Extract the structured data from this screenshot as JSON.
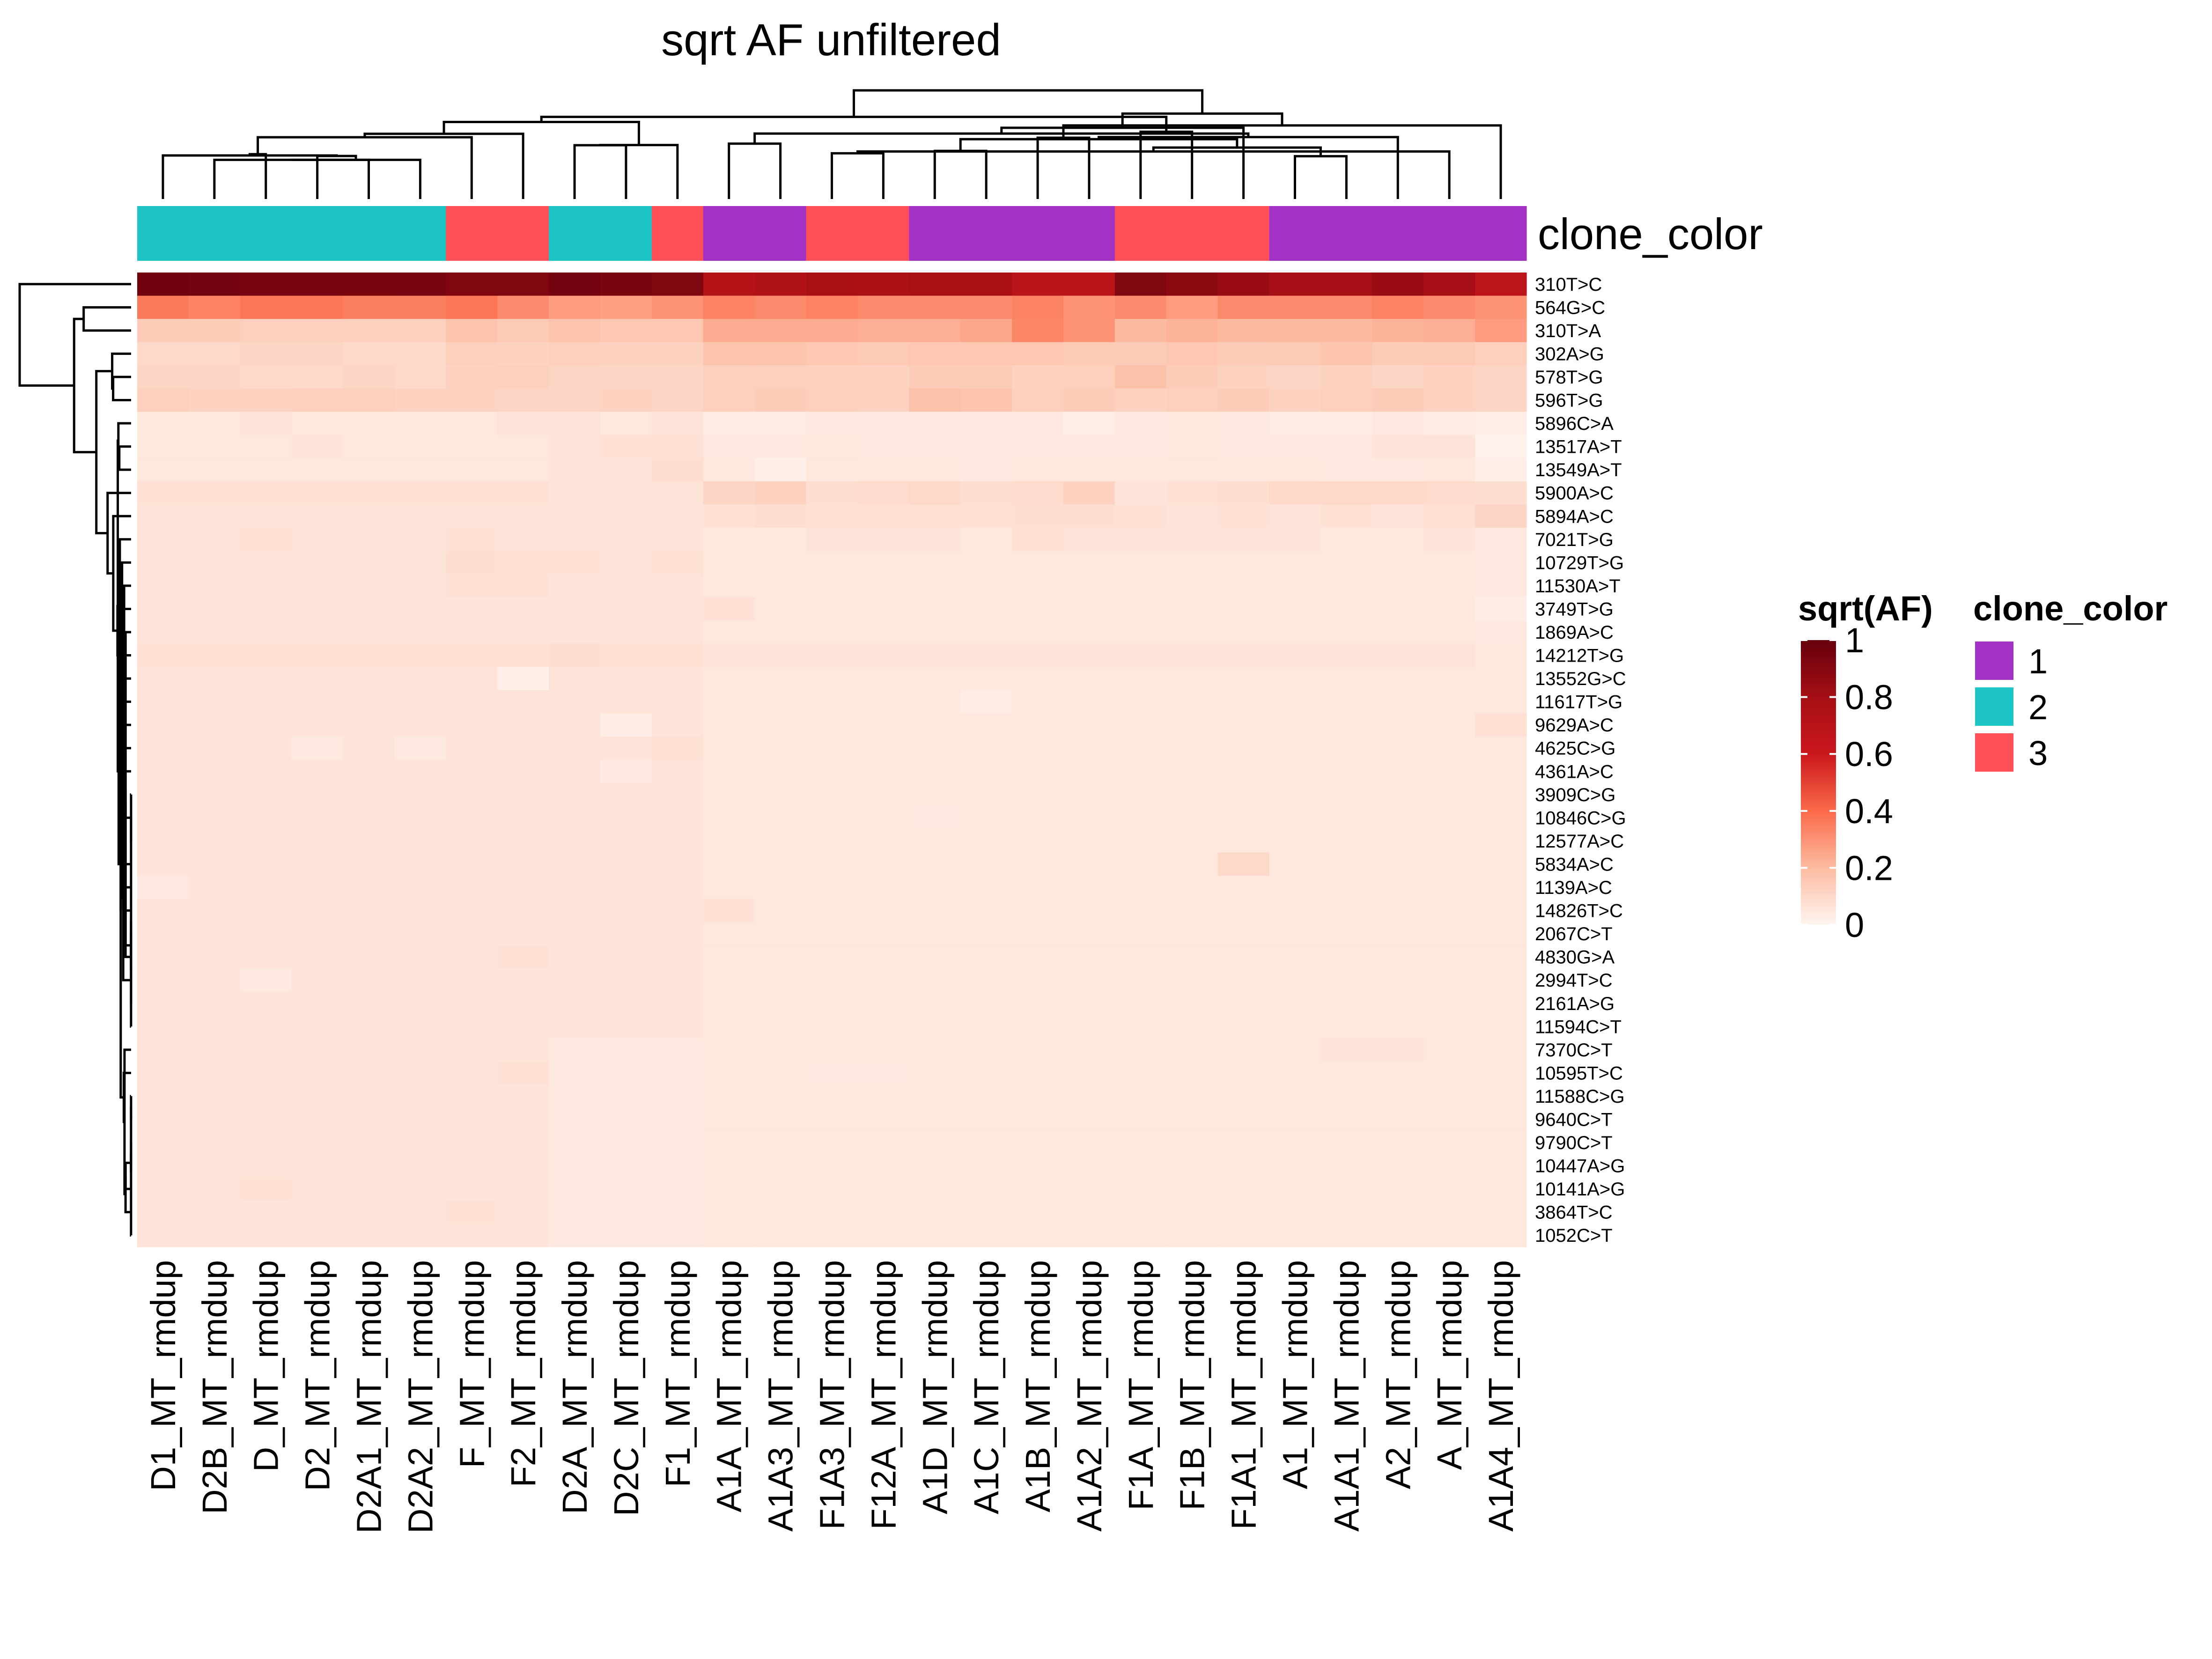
{
  "chart_data": {
    "type": "heatmap",
    "title": "sqrt AF unfiltered",
    "columns": [
      "D1_MT_rmdup",
      "D2B_MT_rmdup",
      "D_MT_rmdup",
      "D2_MT_rmdup",
      "D2A1_MT_rmdup",
      "D2A2_MT_rmdup",
      "F_MT_rmdup",
      "F2_MT_rmdup",
      "D2A_MT_rmdup",
      "D2C_MT_rmdup",
      "F1_MT_rmdup",
      "A1A_MT_rmdup",
      "A1A3_MT_rmdup",
      "F1A3_MT_rmdup",
      "F12A_MT_rmdup",
      "A1D_MT_rmdup",
      "A1C_MT_rmdup",
      "A1B_MT_rmdup",
      "A1A2_MT_rmdup",
      "F1A_MT_rmdup",
      "F1B_MT_rmdup",
      "F1A1_MT_rmdup",
      "A1_MT_rmdup",
      "A1A1_MT_rmdup",
      "A2_MT_rmdup",
      "A_MT_rmdup",
      "A1A4_MT_rmdup"
    ],
    "rows": [
      "310T>C",
      "564G>C",
      "310T>A",
      "302A>G",
      "578T>G",
      "596T>G",
      "5896C>A",
      "13517A>T",
      "13549A>T",
      "5900A>C",
      "5894A>C",
      "7021T>G",
      "10729T>G",
      "11530A>T",
      "3749T>G",
      "1869A>C",
      "14212T>G",
      "13552G>C",
      "11617T>G",
      "9629A>C",
      "4625C>G",
      "4361A>C",
      "3909C>G",
      "10846C>G",
      "12577A>C",
      "5834A>C",
      "1139A>C",
      "14826T>C",
      "2067C>T",
      "4830G>A",
      "2994T>C",
      "2161A>G",
      "11594C>T",
      "7370C>T",
      "10595T>C",
      "11588C>G",
      "9640C>T",
      "9790C>T",
      "10447A>G",
      "10141A>G",
      "3864T>C",
      "1052C>T"
    ],
    "clone": [
      2,
      2,
      2,
      2,
      2,
      2,
      3,
      3,
      2,
      2,
      3,
      1,
      1,
      3,
      3,
      1,
      1,
      1,
      1,
      3,
      3,
      3,
      1,
      1,
      1,
      1,
      1
    ],
    "values": [
      [
        0.97,
        0.96,
        0.95,
        0.95,
        0.94,
        0.95,
        0.92,
        0.92,
        0.96,
        0.94,
        0.92,
        0.72,
        0.74,
        0.78,
        0.76,
        0.78,
        0.78,
        0.7,
        0.7,
        0.92,
        0.88,
        0.84,
        0.8,
        0.8,
        0.84,
        0.8,
        0.68
      ],
      [
        0.36,
        0.34,
        0.37,
        0.37,
        0.35,
        0.35,
        0.37,
        0.32,
        0.28,
        0.27,
        0.3,
        0.34,
        0.32,
        0.34,
        0.32,
        0.32,
        0.32,
        0.34,
        0.3,
        0.32,
        0.28,
        0.32,
        0.32,
        0.32,
        0.34,
        0.32,
        0.3
      ],
      [
        0.14,
        0.14,
        0.13,
        0.13,
        0.13,
        0.13,
        0.17,
        0.15,
        0.17,
        0.16,
        0.16,
        0.24,
        0.24,
        0.24,
        0.23,
        0.23,
        0.25,
        0.33,
        0.3,
        0.2,
        0.22,
        0.2,
        0.2,
        0.2,
        0.22,
        0.23,
        0.28
      ],
      [
        0.1,
        0.1,
        0.11,
        0.11,
        0.1,
        0.1,
        0.13,
        0.12,
        0.13,
        0.12,
        0.12,
        0.17,
        0.17,
        0.16,
        0.15,
        0.16,
        0.16,
        0.16,
        0.15,
        0.14,
        0.16,
        0.14,
        0.15,
        0.17,
        0.14,
        0.15,
        0.13
      ],
      [
        0.11,
        0.11,
        0.1,
        0.1,
        0.11,
        0.1,
        0.12,
        0.13,
        0.11,
        0.11,
        0.11,
        0.13,
        0.13,
        0.12,
        0.12,
        0.14,
        0.14,
        0.12,
        0.13,
        0.18,
        0.14,
        0.12,
        0.11,
        0.12,
        0.11,
        0.12,
        0.11
      ],
      [
        0.13,
        0.12,
        0.12,
        0.13,
        0.13,
        0.12,
        0.12,
        0.11,
        0.11,
        0.12,
        0.11,
        0.13,
        0.14,
        0.13,
        0.12,
        0.18,
        0.17,
        0.13,
        0.14,
        0.12,
        0.13,
        0.14,
        0.12,
        0.13,
        0.14,
        0.12,
        0.11
      ],
      [
        0.05,
        0.05,
        0.06,
        0.05,
        0.05,
        0.05,
        0.05,
        0.06,
        0.06,
        0.05,
        0.06,
        0.03,
        0.03,
        0.04,
        0.04,
        0.04,
        0.04,
        0.04,
        0.02,
        0.04,
        0.05,
        0.04,
        0.03,
        0.03,
        0.04,
        0.03,
        0.02
      ],
      [
        0.05,
        0.05,
        0.05,
        0.06,
        0.05,
        0.05,
        0.05,
        0.05,
        0.06,
        0.07,
        0.07,
        0.04,
        0.04,
        0.05,
        0.04,
        0.04,
        0.04,
        0.04,
        0.04,
        0.04,
        0.05,
        0.04,
        0.04,
        0.04,
        0.06,
        0.06,
        0.01
      ],
      [
        0.05,
        0.05,
        0.05,
        0.05,
        0.05,
        0.05,
        0.05,
        0.05,
        0.06,
        0.06,
        0.08,
        0.05,
        0.02,
        0.05,
        0.05,
        0.05,
        0.04,
        0.05,
        0.05,
        0.05,
        0.05,
        0.05,
        0.05,
        0.04,
        0.04,
        0.05,
        0.02
      ],
      [
        0.07,
        0.07,
        0.07,
        0.07,
        0.07,
        0.07,
        0.07,
        0.07,
        0.06,
        0.06,
        0.06,
        0.11,
        0.12,
        0.08,
        0.09,
        0.1,
        0.08,
        0.09,
        0.12,
        0.06,
        0.07,
        0.08,
        0.1,
        0.1,
        0.1,
        0.09,
        0.08
      ],
      [
        0.06,
        0.06,
        0.06,
        0.06,
        0.06,
        0.06,
        0.06,
        0.06,
        0.06,
        0.06,
        0.06,
        0.07,
        0.08,
        0.07,
        0.07,
        0.07,
        0.07,
        0.08,
        0.08,
        0.07,
        0.06,
        0.07,
        0.06,
        0.07,
        0.06,
        0.07,
        0.11
      ],
      [
        0.06,
        0.06,
        0.07,
        0.06,
        0.06,
        0.06,
        0.07,
        0.06,
        0.06,
        0.06,
        0.06,
        0.05,
        0.05,
        0.06,
        0.06,
        0.06,
        0.05,
        0.07,
        0.06,
        0.06,
        0.06,
        0.06,
        0.06,
        0.05,
        0.05,
        0.06,
        0.04
      ],
      [
        0.06,
        0.06,
        0.06,
        0.06,
        0.06,
        0.06,
        0.08,
        0.07,
        0.07,
        0.06,
        0.07,
        0.05,
        0.05,
        0.05,
        0.05,
        0.05,
        0.05,
        0.05,
        0.05,
        0.05,
        0.05,
        0.05,
        0.05,
        0.05,
        0.05,
        0.05,
        0.04
      ],
      [
        0.06,
        0.06,
        0.06,
        0.06,
        0.06,
        0.06,
        0.07,
        0.07,
        0.06,
        0.06,
        0.06,
        0.05,
        0.05,
        0.05,
        0.05,
        0.05,
        0.05,
        0.05,
        0.05,
        0.05,
        0.05,
        0.05,
        0.05,
        0.05,
        0.05,
        0.05,
        0.04
      ],
      [
        0.06,
        0.06,
        0.06,
        0.06,
        0.06,
        0.06,
        0.06,
        0.06,
        0.06,
        0.06,
        0.06,
        0.07,
        0.05,
        0.05,
        0.05,
        0.05,
        0.05,
        0.05,
        0.05,
        0.05,
        0.05,
        0.05,
        0.05,
        0.05,
        0.05,
        0.05,
        0.03
      ],
      [
        0.06,
        0.06,
        0.06,
        0.06,
        0.06,
        0.06,
        0.06,
        0.06,
        0.06,
        0.06,
        0.06,
        0.05,
        0.05,
        0.05,
        0.05,
        0.05,
        0.05,
        0.05,
        0.05,
        0.05,
        0.05,
        0.05,
        0.05,
        0.05,
        0.05,
        0.05,
        0.04
      ],
      [
        0.07,
        0.07,
        0.07,
        0.07,
        0.07,
        0.07,
        0.07,
        0.07,
        0.08,
        0.07,
        0.07,
        0.06,
        0.06,
        0.06,
        0.06,
        0.06,
        0.06,
        0.06,
        0.06,
        0.06,
        0.06,
        0.06,
        0.06,
        0.06,
        0.06,
        0.06,
        0.05
      ],
      [
        0.06,
        0.06,
        0.06,
        0.06,
        0.06,
        0.06,
        0.06,
        0.02,
        0.06,
        0.06,
        0.06,
        0.05,
        0.05,
        0.05,
        0.05,
        0.05,
        0.05,
        0.05,
        0.05,
        0.05,
        0.05,
        0.05,
        0.05,
        0.05,
        0.05,
        0.05,
        0.05
      ],
      [
        0.06,
        0.06,
        0.06,
        0.06,
        0.06,
        0.06,
        0.06,
        0.06,
        0.06,
        0.06,
        0.06,
        0.05,
        0.05,
        0.05,
        0.05,
        0.05,
        0.03,
        0.05,
        0.05,
        0.05,
        0.05,
        0.05,
        0.05,
        0.05,
        0.05,
        0.05,
        0.05
      ],
      [
        0.06,
        0.06,
        0.06,
        0.06,
        0.06,
        0.06,
        0.06,
        0.06,
        0.06,
        0.03,
        0.06,
        0.05,
        0.05,
        0.05,
        0.05,
        0.05,
        0.05,
        0.05,
        0.05,
        0.05,
        0.05,
        0.05,
        0.05,
        0.05,
        0.05,
        0.05,
        0.07
      ],
      [
        0.06,
        0.06,
        0.06,
        0.04,
        0.06,
        0.04,
        0.06,
        0.06,
        0.06,
        0.06,
        0.07,
        0.05,
        0.05,
        0.05,
        0.05,
        0.05,
        0.05,
        0.05,
        0.05,
        0.05,
        0.05,
        0.05,
        0.05,
        0.05,
        0.05,
        0.05,
        0.05
      ],
      [
        0.06,
        0.06,
        0.06,
        0.06,
        0.06,
        0.06,
        0.06,
        0.06,
        0.06,
        0.04,
        0.06,
        0.05,
        0.05,
        0.05,
        0.05,
        0.05,
        0.05,
        0.05,
        0.05,
        0.05,
        0.05,
        0.05,
        0.05,
        0.05,
        0.05,
        0.05,
        0.05
      ],
      [
        0.06,
        0.06,
        0.06,
        0.06,
        0.06,
        0.06,
        0.06,
        0.06,
        0.06,
        0.06,
        0.06,
        0.05,
        0.05,
        0.05,
        0.05,
        0.05,
        0.05,
        0.05,
        0.05,
        0.05,
        0.05,
        0.05,
        0.05,
        0.05,
        0.05,
        0.05,
        0.05
      ],
      [
        0.06,
        0.06,
        0.06,
        0.06,
        0.06,
        0.06,
        0.06,
        0.06,
        0.06,
        0.06,
        0.06,
        0.05,
        0.05,
        0.05,
        0.05,
        0.04,
        0.05,
        0.05,
        0.05,
        0.05,
        0.05,
        0.05,
        0.05,
        0.05,
        0.05,
        0.05,
        0.05
      ],
      [
        0.06,
        0.06,
        0.06,
        0.06,
        0.06,
        0.06,
        0.06,
        0.06,
        0.06,
        0.06,
        0.06,
        0.05,
        0.05,
        0.05,
        0.05,
        0.05,
        0.05,
        0.05,
        0.05,
        0.05,
        0.05,
        0.05,
        0.05,
        0.05,
        0.05,
        0.05,
        0.05
      ],
      [
        0.06,
        0.06,
        0.06,
        0.06,
        0.06,
        0.06,
        0.06,
        0.06,
        0.06,
        0.06,
        0.06,
        0.05,
        0.05,
        0.05,
        0.05,
        0.05,
        0.05,
        0.05,
        0.05,
        0.05,
        0.05,
        0.1,
        0.05,
        0.05,
        0.05,
        0.05,
        0.05
      ],
      [
        0.04,
        0.06,
        0.06,
        0.06,
        0.06,
        0.06,
        0.06,
        0.06,
        0.06,
        0.06,
        0.06,
        0.05,
        0.05,
        0.05,
        0.05,
        0.05,
        0.05,
        0.05,
        0.05,
        0.05,
        0.05,
        0.05,
        0.05,
        0.05,
        0.05,
        0.05,
        0.05
      ],
      [
        0.06,
        0.06,
        0.06,
        0.06,
        0.06,
        0.06,
        0.06,
        0.06,
        0.06,
        0.06,
        0.06,
        0.07,
        0.05,
        0.05,
        0.05,
        0.05,
        0.05,
        0.05,
        0.05,
        0.05,
        0.05,
        0.05,
        0.05,
        0.05,
        0.05,
        0.05,
        0.05
      ],
      [
        0.06,
        0.06,
        0.06,
        0.06,
        0.06,
        0.06,
        0.06,
        0.06,
        0.06,
        0.06,
        0.06,
        0.05,
        0.05,
        0.05,
        0.05,
        0.05,
        0.05,
        0.05,
        0.05,
        0.05,
        0.05,
        0.05,
        0.05,
        0.05,
        0.05,
        0.05,
        0.05
      ],
      [
        0.06,
        0.06,
        0.06,
        0.06,
        0.06,
        0.06,
        0.06,
        0.07,
        0.06,
        0.06,
        0.06,
        0.05,
        0.05,
        0.05,
        0.05,
        0.05,
        0.05,
        0.05,
        0.05,
        0.05,
        0.05,
        0.05,
        0.05,
        0.05,
        0.05,
        0.05,
        0.05
      ],
      [
        0.06,
        0.06,
        0.04,
        0.06,
        0.06,
        0.06,
        0.06,
        0.06,
        0.06,
        0.06,
        0.06,
        0.05,
        0.05,
        0.05,
        0.05,
        0.05,
        0.05,
        0.05,
        0.05,
        0.05,
        0.05,
        0.05,
        0.05,
        0.05,
        0.05,
        0.05,
        0.05
      ],
      [
        0.06,
        0.06,
        0.06,
        0.06,
        0.06,
        0.06,
        0.06,
        0.06,
        0.06,
        0.06,
        0.06,
        0.05,
        0.05,
        0.05,
        0.05,
        0.05,
        0.05,
        0.05,
        0.05,
        0.05,
        0.05,
        0.05,
        0.05,
        0.05,
        0.05,
        0.05,
        0.05
      ],
      [
        0.06,
        0.06,
        0.06,
        0.06,
        0.06,
        0.06,
        0.06,
        0.06,
        0.06,
        0.06,
        0.06,
        0.05,
        0.05,
        0.05,
        0.05,
        0.05,
        0.05,
        0.05,
        0.05,
        0.05,
        0.05,
        0.05,
        0.05,
        0.05,
        0.05,
        0.05,
        0.05
      ],
      [
        0.06,
        0.06,
        0.06,
        0.06,
        0.06,
        0.06,
        0.06,
        0.06,
        0.04,
        0.04,
        0.04,
        0.05,
        0.05,
        0.05,
        0.05,
        0.05,
        0.05,
        0.05,
        0.05,
        0.05,
        0.05,
        0.05,
        0.05,
        0.06,
        0.06,
        0.05,
        0.05
      ],
      [
        0.06,
        0.06,
        0.06,
        0.06,
        0.06,
        0.06,
        0.06,
        0.07,
        0.04,
        0.04,
        0.04,
        0.05,
        0.05,
        0.04,
        0.04,
        0.05,
        0.05,
        0.05,
        0.05,
        0.05,
        0.05,
        0.05,
        0.05,
        0.05,
        0.05,
        0.05,
        0.05
      ],
      [
        0.06,
        0.06,
        0.06,
        0.06,
        0.06,
        0.06,
        0.06,
        0.06,
        0.04,
        0.04,
        0.04,
        0.05,
        0.05,
        0.05,
        0.05,
        0.05,
        0.05,
        0.05,
        0.05,
        0.05,
        0.05,
        0.05,
        0.05,
        0.05,
        0.05,
        0.05,
        0.05
      ],
      [
        0.06,
        0.06,
        0.06,
        0.06,
        0.06,
        0.06,
        0.06,
        0.06,
        0.04,
        0.04,
        0.04,
        0.05,
        0.05,
        0.05,
        0.05,
        0.05,
        0.05,
        0.05,
        0.05,
        0.05,
        0.05,
        0.05,
        0.05,
        0.05,
        0.05,
        0.05,
        0.05
      ],
      [
        0.06,
        0.06,
        0.06,
        0.06,
        0.06,
        0.06,
        0.06,
        0.06,
        0.04,
        0.04,
        0.04,
        0.05,
        0.05,
        0.05,
        0.05,
        0.05,
        0.05,
        0.05,
        0.05,
        0.05,
        0.05,
        0.05,
        0.05,
        0.05,
        0.05,
        0.05,
        0.05
      ],
      [
        0.06,
        0.06,
        0.06,
        0.06,
        0.06,
        0.06,
        0.06,
        0.06,
        0.04,
        0.04,
        0.04,
        0.05,
        0.05,
        0.05,
        0.05,
        0.05,
        0.05,
        0.05,
        0.05,
        0.05,
        0.05,
        0.05,
        0.05,
        0.05,
        0.05,
        0.05,
        0.05
      ],
      [
        0.06,
        0.06,
        0.07,
        0.06,
        0.06,
        0.06,
        0.06,
        0.06,
        0.04,
        0.04,
        0.04,
        0.05,
        0.05,
        0.05,
        0.05,
        0.05,
        0.05,
        0.05,
        0.05,
        0.05,
        0.05,
        0.05,
        0.05,
        0.05,
        0.05,
        0.05,
        0.05
      ],
      [
        0.06,
        0.06,
        0.06,
        0.06,
        0.06,
        0.06,
        0.07,
        0.06,
        0.04,
        0.04,
        0.04,
        0.05,
        0.05,
        0.05,
        0.05,
        0.05,
        0.05,
        0.05,
        0.05,
        0.05,
        0.05,
        0.05,
        0.05,
        0.05,
        0.05,
        0.05,
        0.05
      ],
      [
        0.06,
        0.06,
        0.06,
        0.06,
        0.06,
        0.06,
        0.06,
        0.06,
        0.04,
        0.04,
        0.04,
        0.05,
        0.05,
        0.05,
        0.05,
        0.05,
        0.05,
        0.05,
        0.05,
        0.05,
        0.05,
        0.05,
        0.05,
        0.05,
        0.05,
        0.05,
        0.05
      ]
    ],
    "annotation": {
      "name": "clone_color",
      "levels": [
        "1",
        "2",
        "3"
      ],
      "colors": {
        "1": "#a232c4",
        "2": "#1ec5c5",
        "3": "#ff5058"
      }
    },
    "colorbar": {
      "title": "sqrt(AF)",
      "ticks": [
        "0",
        "0.2",
        "0.4",
        "0.6",
        "0.8",
        "1"
      ],
      "tick_values": [
        0,
        0.2,
        0.4,
        0.6,
        0.8,
        1
      ],
      "range": [
        0,
        1
      ],
      "palette": [
        "#fff5f0",
        "#fcbba1",
        "#fb6a4a",
        "#cb181d",
        "#a50f15",
        "#67000d"
      ]
    },
    "legend_position": "right",
    "dendrograms": {
      "rows": true,
      "columns": true
    }
  }
}
